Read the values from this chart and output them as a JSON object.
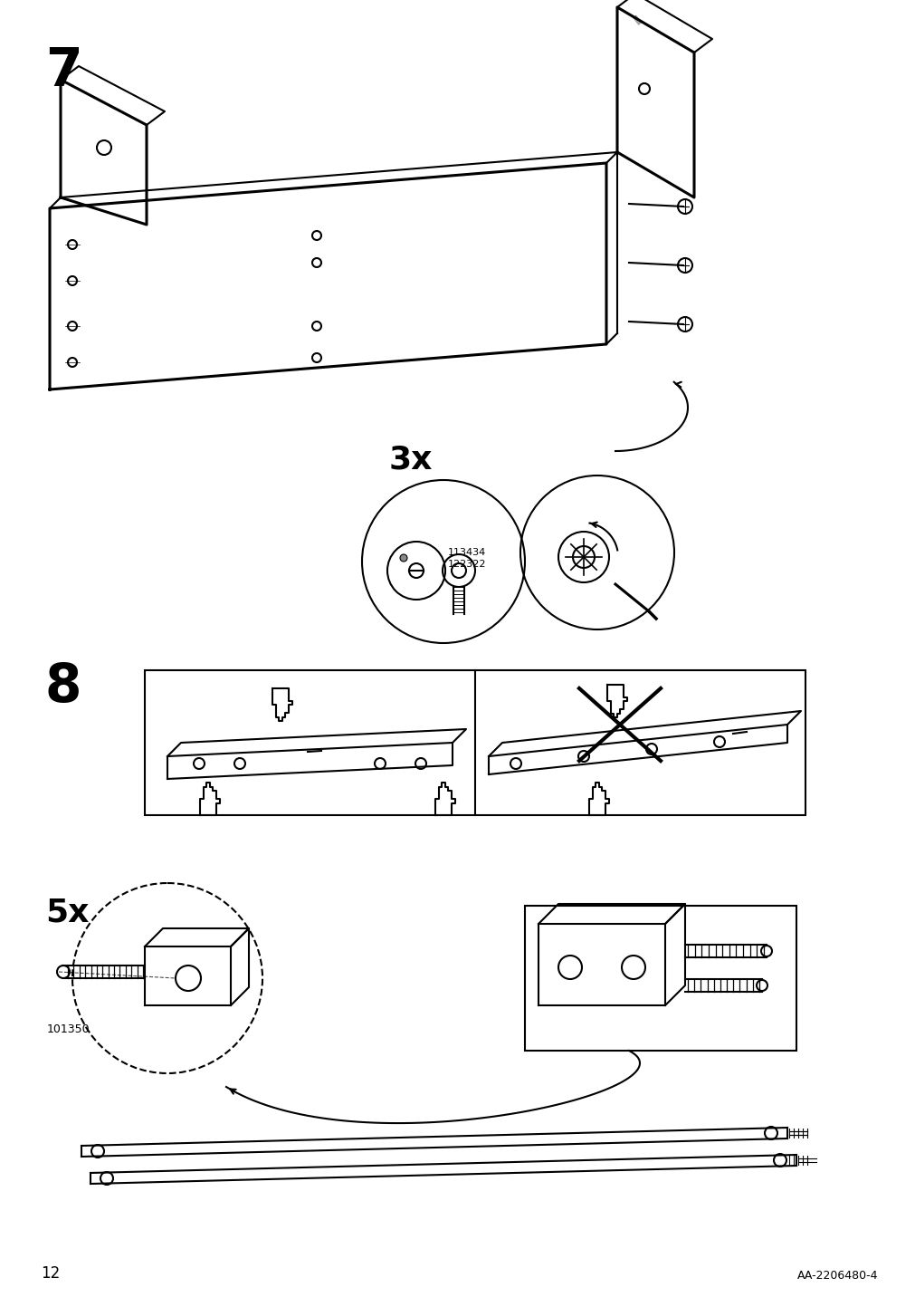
{
  "page_num": "12",
  "doc_id": "AA-2206480-4",
  "step7_label": "7",
  "step8_label": "8",
  "qty_3x": "3x",
  "qty_5x": "5x",
  "part_id1": "113434\n122322",
  "part_id2": "101350",
  "bg_color": "#ffffff",
  "line_color": "#000000",
  "lw": 1.5,
  "tlw": 2.2
}
